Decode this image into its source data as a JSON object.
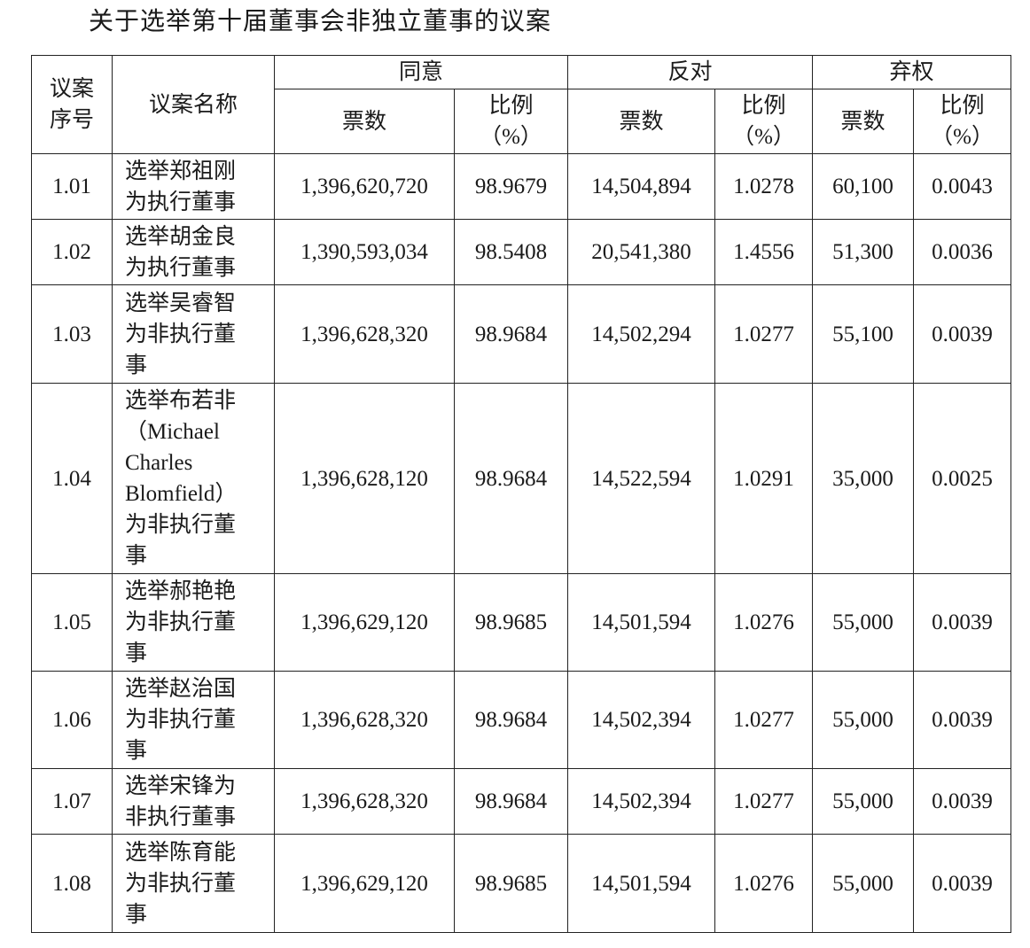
{
  "title": "关于选举第十届董事会非独立董事的议案",
  "table": {
    "header": {
      "number": "议案\n序号",
      "name": "议案名称",
      "groups": [
        {
          "label": "同意",
          "votes": "票数",
          "ratio": "比例\n（%）"
        },
        {
          "label": "反对",
          "votes": "票数",
          "ratio": "比例\n（%）"
        },
        {
          "label": "弃权",
          "votes": "票数",
          "ratio": "比例\n（%）"
        }
      ]
    },
    "rows": [
      [
        "1.01",
        "选举郑祖刚\n为执行董事",
        "1,396,620,720",
        "98.9679",
        "14,504,894",
        "1.0278",
        "60,100",
        "0.0043"
      ],
      [
        "1.02",
        "选举胡金良\n为执行董事",
        "1,390,593,034",
        "98.5408",
        "20,541,380",
        "1.4556",
        "51,300",
        "0.0036"
      ],
      [
        "1.03",
        "选举吴睿智\n为非执行董\n事",
        "1,396,628,320",
        "98.9684",
        "14,502,294",
        "1.0277",
        "55,100",
        "0.0039"
      ],
      [
        "1.04",
        "选举布若非\n（Michael\nCharles\nBlomfield）\n为非执行董\n事",
        "1,396,628,120",
        "98.9684",
        "14,522,594",
        "1.0291",
        "35,000",
        "0.0025"
      ],
      [
        "1.05",
        "选举郝艳艳\n为非执行董\n事",
        "1,396,629,120",
        "98.9685",
        "14,501,594",
        "1.0276",
        "55,000",
        "0.0039"
      ],
      [
        "1.06",
        "选举赵治国\n为非执行董\n事",
        "1,396,628,320",
        "98.9684",
        "14,502,394",
        "1.0277",
        "55,000",
        "0.0039"
      ],
      [
        "1.07",
        "选举宋锋为\n非执行董事",
        "1,396,628,320",
        "98.9684",
        "14,502,394",
        "1.0277",
        "55,000",
        "0.0039"
      ],
      [
        "1.08",
        "选举陈育能\n为非执行董\n事",
        "1,396,629,120",
        "98.9685",
        "14,501,594",
        "1.0276",
        "55,000",
        "0.0039"
      ]
    ]
  }
}
